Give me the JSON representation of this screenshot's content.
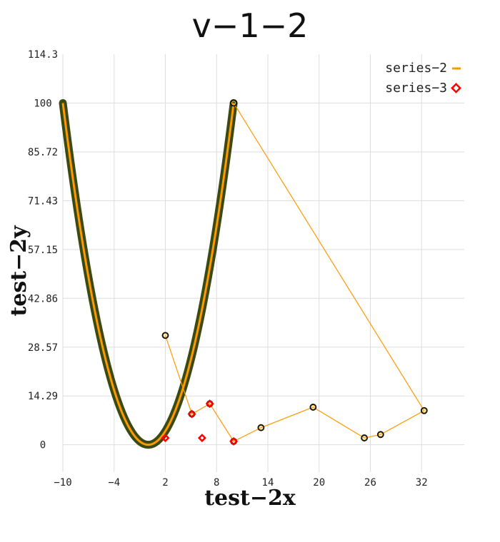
{
  "chart_data": {
    "type": "line",
    "title": "v−1−2",
    "xlabel": "test−2x",
    "ylabel": "test−2y",
    "xlim": [
      -10,
      37
    ],
    "ylim": [
      -8,
      114.3
    ],
    "xticks": [
      -10,
      -4,
      2,
      8,
      14,
      20,
      26,
      32
    ],
    "xtick_labels": [
      "−10",
      "−4",
      "2",
      "8",
      "14",
      "20",
      "26",
      "32"
    ],
    "yticks": [
      0,
      14.29,
      28.57,
      42.86,
      57.15,
      71.43,
      85.72,
      100,
      114.3
    ],
    "ytick_labels": [
      "0",
      "14.29",
      "28.57",
      "42.86",
      "57.15",
      "71.43",
      "85.72",
      "100",
      "114.3"
    ],
    "grid": true,
    "legend_position": "top-right",
    "series": [
      {
        "name": "series−2",
        "kind": "line",
        "color": "#ff9900",
        "marker_color": "#3a4a10",
        "curve": {
          "formula": "y = x^2",
          "x_range": [
            -10,
            10
          ],
          "samples": 161
        },
        "x": [
          10,
          32.3,
          27.2,
          25.3,
          19.3,
          13.2,
          10,
          7.2,
          5.1,
          2
        ],
        "y": [
          100,
          10,
          3,
          2,
          11,
          5,
          1,
          12,
          9,
          32
        ]
      },
      {
        "name": "series−3",
        "kind": "scatter",
        "color": "#ff0000",
        "marker": "diamond",
        "x": [
          2,
          5.1,
          7.2,
          10,
          6.3
        ],
        "y": [
          2,
          9,
          12,
          1,
          2
        ]
      }
    ]
  }
}
